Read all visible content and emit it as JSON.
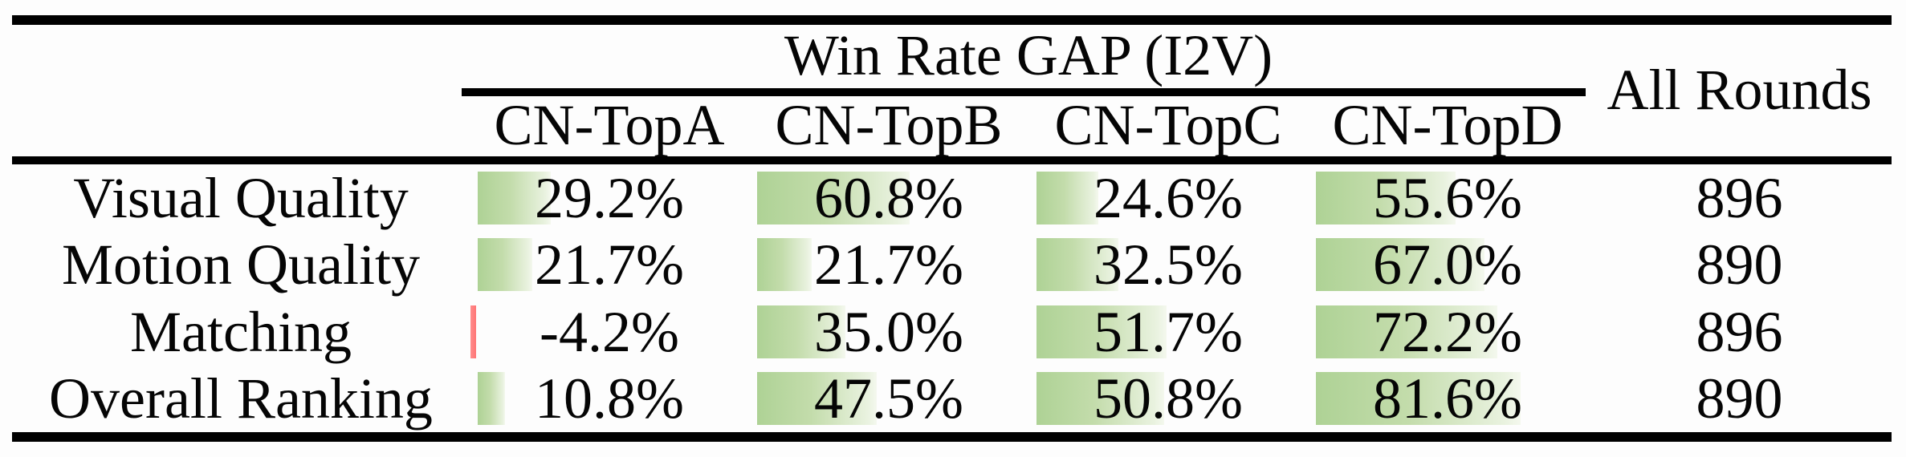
{
  "table": {
    "title": "Win Rate GAP (I2V)",
    "all_rounds_label": "All Rounds",
    "columns": [
      "CN-TopA",
      "CN-TopB",
      "CN-TopC",
      "CN-TopD"
    ],
    "rows": [
      {
        "label": "Visual Quality",
        "values": [
          "29.2%",
          "60.8%",
          "24.6%",
          "55.6%"
        ],
        "all_rounds": "896"
      },
      {
        "label": "Motion Quality",
        "values": [
          "21.7%",
          "21.7%",
          "32.5%",
          "67.0%"
        ],
        "all_rounds": "890"
      },
      {
        "label": "Matching",
        "values": [
          "-4.2%",
          "35.0%",
          "51.7%",
          "72.2%"
        ],
        "all_rounds": "896"
      },
      {
        "label": "Overall Ranking",
        "values": [
          "10.8%",
          "47.5%",
          "50.8%",
          "81.6%"
        ],
        "all_rounds": "890"
      }
    ]
  },
  "chart_data": {
    "type": "table",
    "title": "Win Rate GAP (I2V)",
    "categories": [
      "CN-TopA",
      "CN-TopB",
      "CN-TopC",
      "CN-TopD"
    ],
    "row_labels": [
      "Visual Quality",
      "Motion Quality",
      "Matching",
      "Overall Ranking"
    ],
    "series": [
      {
        "name": "Visual Quality",
        "values": [
          29.2,
          60.8,
          24.6,
          55.6
        ],
        "all_rounds": 896
      },
      {
        "name": "Motion Quality",
        "values": [
          21.7,
          21.7,
          32.5,
          67.0
        ],
        "all_rounds": 890
      },
      {
        "name": "Matching",
        "values": [
          -4.2,
          35.0,
          51.7,
          72.2
        ],
        "all_rounds": 896
      },
      {
        "name": "Overall Ranking",
        "values": [
          10.8,
          47.5,
          50.8,
          81.6
        ],
        "all_rounds": 890
      }
    ],
    "bar_axis_min": 0,
    "bar_axis_max": 100,
    "bar_style": "left-anchored gradient data bars behind centered value text; negative values drawn as thin red bar"
  },
  "colors": {
    "bar_positive_start": "#aed295",
    "bar_positive_end": "#f4f8ee",
    "bar_negative": "#ff7676",
    "rule": "#000000",
    "text": "#050505",
    "background": "#fdfdfd"
  }
}
